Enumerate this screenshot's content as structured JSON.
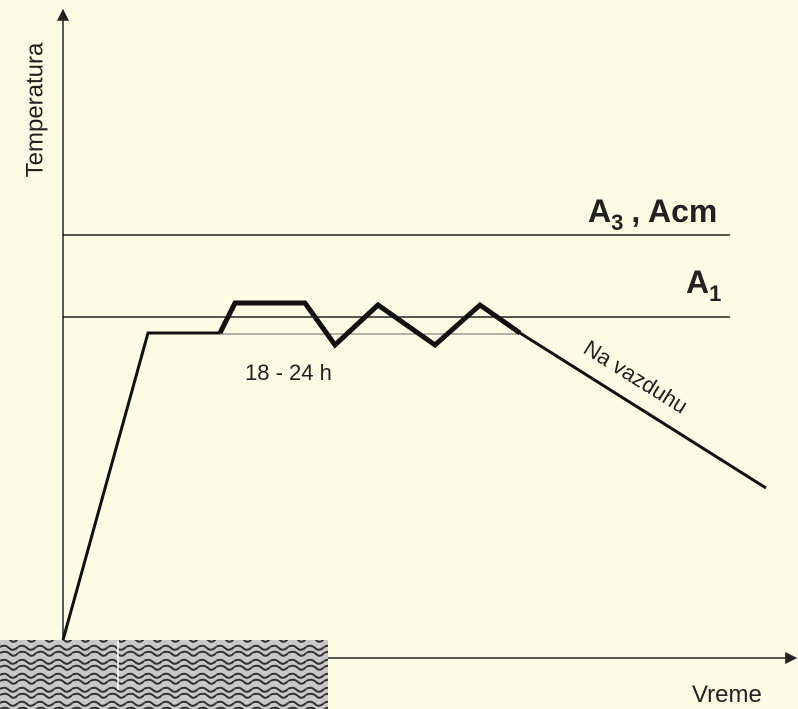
{
  "axes": {
    "y_label": "Temperatura",
    "x_label": "Vreme"
  },
  "lines": {
    "a3": {
      "main": "A",
      "sub": "3",
      "rest": ", Acm"
    },
    "a1": {
      "main": "A",
      "sub": "1"
    }
  },
  "annotations": {
    "duration": "18 - 24 h",
    "cooling": "Na vazduhu"
  }
}
